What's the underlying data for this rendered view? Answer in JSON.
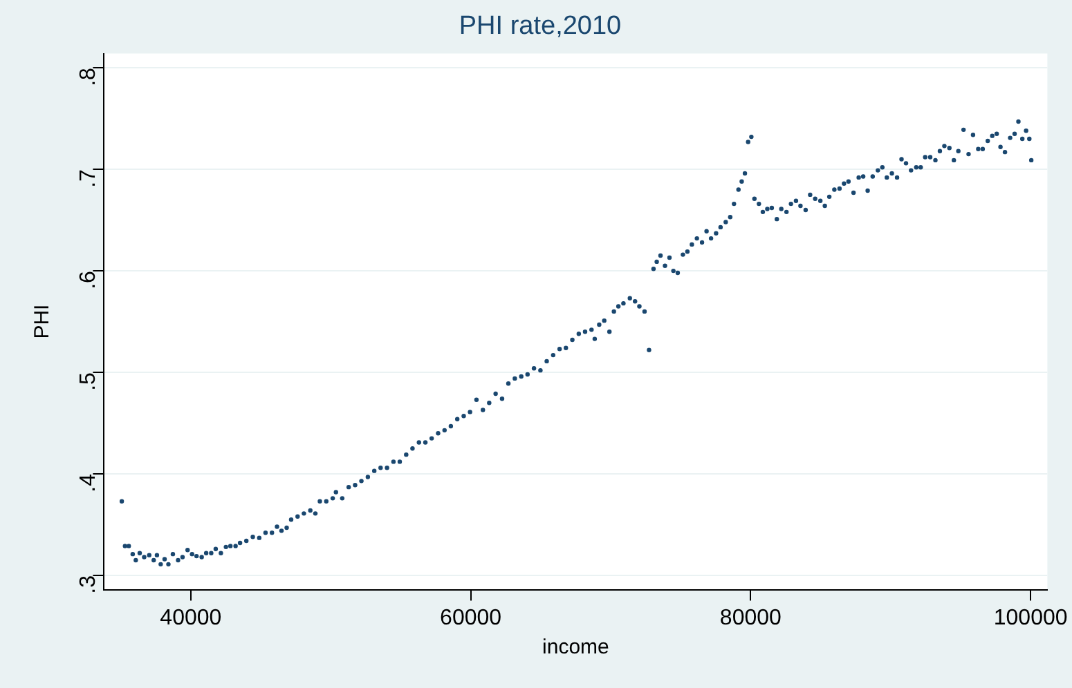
{
  "chart_data": {
    "type": "scatter",
    "title": "PHI rate,2010",
    "xlabel": "income",
    "ylabel": "PHI",
    "xlim": [
      33800,
      101200
    ],
    "ylim": [
      0.286,
      0.814
    ],
    "xticks": [
      40000,
      60000,
      80000,
      100000
    ],
    "yticks": [
      {
        "value": 0.3,
        "label": ".3"
      },
      {
        "value": 0.4,
        "label": ".4"
      },
      {
        "value": 0.5,
        "label": ".5"
      },
      {
        "value": 0.6,
        "label": ".6"
      },
      {
        "value": 0.7,
        "label": ".7"
      },
      {
        "value": 0.8,
        "label": ".8"
      }
    ],
    "grid": "y",
    "legend": false,
    "marker": "circle",
    "series": [
      {
        "color": "#1a476f",
        "x": [
          35070,
          35300,
          35570,
          35850,
          36070,
          36350,
          36670,
          37030,
          37350,
          37580,
          37850,
          38130,
          38400,
          38720,
          39090,
          39410,
          39770,
          40090,
          40410,
          40780,
          41100,
          41460,
          41780,
          42150,
          42510,
          42830,
          43200,
          43520,
          43970,
          44430,
          44890,
          45340,
          45800,
          46160,
          46480,
          46850,
          47170,
          47630,
          48080,
          48540,
          48900,
          49220,
          49680,
          50140,
          50370,
          50820,
          51280,
          51740,
          52190,
          52650,
          53110,
          53560,
          54020,
          54480,
          54930,
          55390,
          55840,
          56300,
          56760,
          57210,
          57670,
          58130,
          58580,
          59040,
          59500,
          59950,
          60410,
          60870,
          61320,
          61780,
          62240,
          62690,
          63150,
          63610,
          64060,
          64520,
          64980,
          65430,
          65890,
          66350,
          66800,
          67260,
          67720,
          68170,
          68630,
          68860,
          69180,
          69540,
          69910,
          70230,
          70550,
          70910,
          71370,
          71740,
          72050,
          72420,
          72740,
          73060,
          73290,
          73560,
          73880,
          74200,
          74480,
          74790,
          75160,
          75480,
          75800,
          76160,
          76530,
          76850,
          77170,
          77530,
          77850,
          78220,
          78540,
          78810,
          79130,
          79360,
          79590,
          79820,
          80050,
          80270,
          80590,
          80870,
          81190,
          81510,
          81870,
          82190,
          82560,
          82880,
          83240,
          83560,
          83930,
          84250,
          84610,
          84980,
          85300,
          85620,
          85980,
          86350,
          86670,
          86990,
          87350,
          87720,
          88040,
          88360,
          88720,
          89090,
          89410,
          89730,
          90090,
          90460,
          90780,
          91100,
          91460,
          91830,
          92150,
          92470,
          92830,
          93200,
          93520,
          93840,
          94200,
          94520,
          94840,
          95210,
          95570,
          95890,
          96260,
          96580,
          96940,
          97260,
          97580,
          97850,
          98170,
          98540,
          98860,
          99130,
          99410,
          99680,
          99910,
          100050
        ],
        "values": [
          0.373,
          0.329,
          0.329,
          0.321,
          0.315,
          0.322,
          0.318,
          0.32,
          0.315,
          0.32,
          0.311,
          0.316,
          0.311,
          0.321,
          0.315,
          0.318,
          0.325,
          0.321,
          0.319,
          0.318,
          0.322,
          0.322,
          0.326,
          0.322,
          0.328,
          0.329,
          0.329,
          0.332,
          0.334,
          0.338,
          0.337,
          0.342,
          0.342,
          0.348,
          0.344,
          0.347,
          0.355,
          0.358,
          0.361,
          0.364,
          0.361,
          0.373,
          0.373,
          0.376,
          0.382,
          0.376,
          0.387,
          0.389,
          0.393,
          0.397,
          0.403,
          0.406,
          0.406,
          0.412,
          0.412,
          0.419,
          0.425,
          0.431,
          0.431,
          0.435,
          0.44,
          0.443,
          0.447,
          0.454,
          0.457,
          0.461,
          0.473,
          0.463,
          0.47,
          0.479,
          0.474,
          0.489,
          0.494,
          0.496,
          0.498,
          0.504,
          0.502,
          0.511,
          0.517,
          0.523,
          0.524,
          0.532,
          0.538,
          0.54,
          0.542,
          0.533,
          0.547,
          0.551,
          0.54,
          0.56,
          0.565,
          0.568,
          0.573,
          0.57,
          0.565,
          0.56,
          0.522,
          0.602,
          0.609,
          0.615,
          0.605,
          0.613,
          0.6,
          0.598,
          0.616,
          0.619,
          0.626,
          0.632,
          0.628,
          0.639,
          0.632,
          0.637,
          0.643,
          0.648,
          0.653,
          0.666,
          0.68,
          0.688,
          0.696,
          0.727,
          0.732,
          0.671,
          0.666,
          0.658,
          0.661,
          0.662,
          0.651,
          0.661,
          0.658,
          0.666,
          0.669,
          0.664,
          0.66,
          0.675,
          0.671,
          0.669,
          0.664,
          0.673,
          0.68,
          0.681,
          0.686,
          0.688,
          0.677,
          0.692,
          0.693,
          0.679,
          0.693,
          0.699,
          0.702,
          0.692,
          0.696,
          0.692,
          0.71,
          0.706,
          0.699,
          0.702,
          0.702,
          0.712,
          0.712,
          0.709,
          0.718,
          0.723,
          0.721,
          0.709,
          0.718,
          0.739,
          0.715,
          0.734,
          0.72,
          0.72,
          0.728,
          0.733,
          0.735,
          0.722,
          0.717,
          0.731,
          0.735,
          0.747,
          0.73,
          0.738,
          0.73,
          0.709
        ]
      }
    ]
  }
}
